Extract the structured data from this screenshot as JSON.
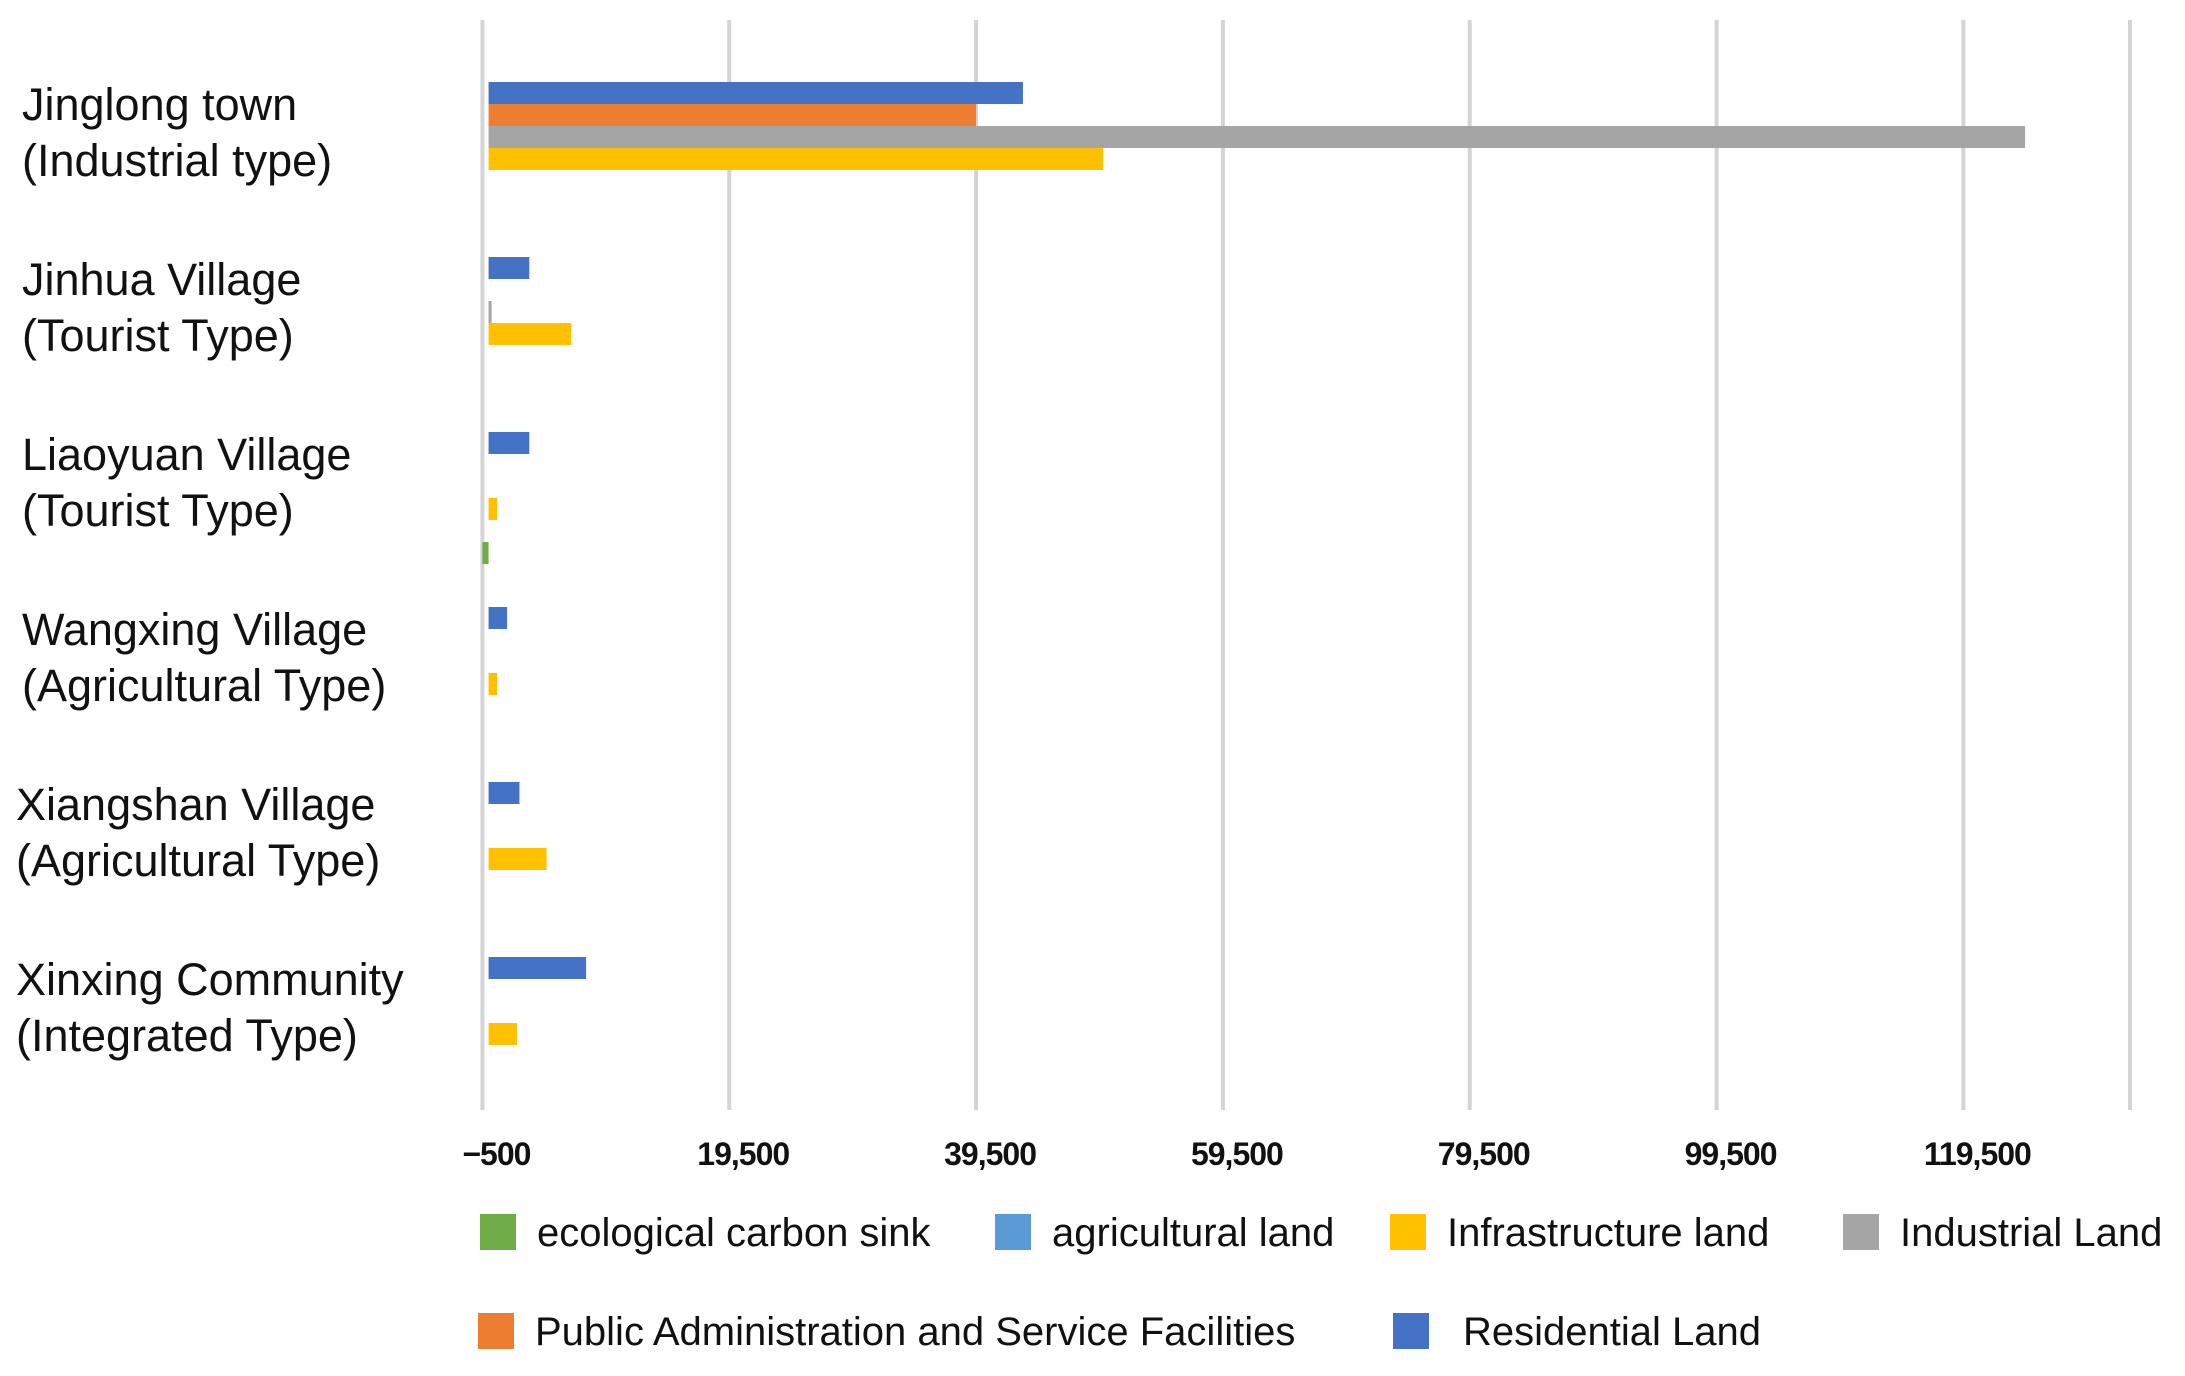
{
  "chart_data": {
    "type": "bar",
    "orientation": "horizontal",
    "title": "",
    "xlabel": "",
    "ylabel": "",
    "xlim": [
      -1100,
      133000
    ],
    "grid": true,
    "x_ticks": [
      -500,
      19500,
      39500,
      59500,
      79500,
      99500,
      119500
    ],
    "x_tick_labels": [
      "−500",
      "19,500",
      "39,500",
      "59,500",
      "79,500",
      "99,500",
      "119,500"
    ],
    "categories": [
      {
        "line1": "Jinglong town",
        "line2": "(Industrial type)"
      },
      {
        "line1": "Jinhua Village",
        "line2": "(Tourist Type)"
      },
      {
        "line1": "Liaoyuan Village",
        "line2": "(Tourist Type)"
      },
      {
        "line1": "Wangxing Village",
        "line2": "(Agricultural Type)"
      },
      {
        "line1": "Xiangshan Village",
        "line2": "(Agricultural Type)"
      },
      {
        "line1": "Xinxing Community",
        "line2": "(Integrated Type)"
      }
    ],
    "series": [
      {
        "name": "ecological carbon sink",
        "color": "#70ad47",
        "values": [
          0,
          0,
          -500,
          0,
          0,
          0
        ]
      },
      {
        "name": "agricultural land",
        "color": "#5b9bd5",
        "values": [
          0,
          0,
          0,
          0,
          0,
          0
        ]
      },
      {
        "name": "Infrastructure land",
        "color": "#ffc000",
        "values": [
          49800,
          6700,
          700,
          700,
          4700,
          2300
        ]
      },
      {
        "name": "Industrial Land",
        "color": "#a5a5a5",
        "values": [
          124500,
          200,
          0,
          0,
          0,
          0
        ]
      },
      {
        "name": "Public Administration and Service Facilities",
        "color": "#ed7d31",
        "values": [
          39500,
          0,
          0,
          0,
          0,
          0
        ]
      },
      {
        "name": "Residential Land",
        "color": "#4472c4",
        "values": [
          43300,
          3300,
          3300,
          1500,
          2500,
          7900
        ]
      }
    ],
    "legend_position": "bottom"
  }
}
